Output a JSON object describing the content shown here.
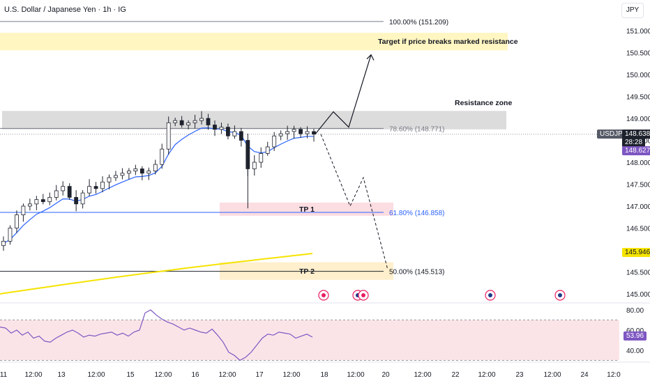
{
  "header": {
    "symbol_title": "U.S. Dollar / Japanese Yen · 1h · IG",
    "currency_button": "JPY"
  },
  "price_tags": {
    "ticker": "USDJPY",
    "last_price": "148.638",
    "countdown": "28:28",
    "bid_price": "148.627",
    "ma_price": "145.946",
    "ticker_color": "#555a66",
    "countdown_color": "#1e222d",
    "bid_color": "#7e57c2",
    "ma_color": "#f5e300"
  },
  "colors": {
    "candle": "#1e222d",
    "ma_fast": "#2962ff",
    "ma_slow": "#f5e300",
    "rsi_line": "#7e57c2",
    "rsi_band": "#fbe4e8",
    "fib_line": "#787b86",
    "fib_618": "#2962ff",
    "resistance_zone": "#dcdcdc",
    "target_zone": "#fff6c2",
    "tp1_zone": "#fcdde1",
    "tp2_zone": "#ffefcc"
  },
  "annotations": {
    "target_text": "Target if price breaks marked resistance",
    "resistance_text": "Resistance zone",
    "tp1": "TP 1",
    "tp2": "TP 2"
  },
  "chart_data": {
    "type": "candlestick",
    "title": "U.S. Dollar / Japanese Yen · 1h · IG",
    "ylim": [
      144.85,
      151.45
    ],
    "y_ticks": [
      "151.000",
      "150.500",
      "150.000",
      "149.500",
      "149.000",
      "148.500",
      "148.000",
      "147.500",
      "147.000",
      "146.500",
      "146.000",
      "145.500",
      "145.000"
    ],
    "x_ticks": [
      "11",
      "12:00",
      "13",
      "12:00",
      "15",
      "12:00",
      "16",
      "12:00",
      "17",
      "12:00",
      "18",
      "12:00",
      "20",
      "12:00",
      "22",
      "12:00",
      "23",
      "12:00",
      "24",
      "12:0"
    ],
    "fib_levels": [
      {
        "label": "100.00% (151.209)",
        "price": 151.209
      },
      {
        "label": "78.60% (148.771)",
        "price": 148.771
      },
      {
        "label": "61.80% (146.858)",
        "price": 146.858
      },
      {
        "label": "50.00% (145.513)",
        "price": 145.513
      }
    ],
    "zones": {
      "target": [
        150.55,
        150.95
      ],
      "resistance": [
        148.75,
        149.17
      ],
      "tp1": [
        146.78,
        147.08
      ],
      "tp2": [
        145.32,
        145.72
      ]
    },
    "close_path": [
      146.2,
      146.5,
      146.8,
      147.0,
      147.05,
      147.15,
      147.1,
      147.2,
      147.35,
      147.45,
      147.2,
      147.05,
      147.3,
      147.45,
      147.4,
      147.55,
      147.65,
      147.7,
      147.75,
      147.8,
      147.85,
      147.75,
      147.8,
      147.95,
      148.3,
      148.9,
      148.95,
      148.85,
      148.9,
      148.95,
      149.0,
      148.85,
      148.75,
      148.8,
      148.6,
      148.7,
      148.5,
      147.85,
      148.0,
      148.2,
      148.35,
      148.6,
      148.65,
      148.7,
      148.75,
      148.65,
      148.7,
      148.64
    ],
    "projection_up": [
      [
        148.64,
        0
      ],
      [
        149.15,
        1
      ],
      [
        148.8,
        2
      ],
      [
        150.45,
        3
      ]
    ],
    "projection_down": [
      [
        148.64,
        0
      ],
      [
        147.0,
        1
      ],
      [
        147.65,
        2
      ],
      [
        145.55,
        3
      ]
    ],
    "rsi": {
      "y_ticks": [
        "80.00",
        "60.00",
        "40.00"
      ],
      "current": "53.96",
      "levels": [
        70,
        30
      ],
      "values": [
        63,
        62,
        57,
        60,
        55,
        58,
        52,
        54,
        49,
        48,
        52,
        55,
        58,
        60,
        57,
        53,
        55,
        54,
        56,
        57,
        58,
        55,
        57,
        54,
        58,
        60,
        77,
        80,
        75,
        71,
        68,
        66,
        63,
        60,
        62,
        60,
        58,
        57,
        61,
        55,
        48,
        38,
        35,
        30,
        33,
        38,
        45,
        52,
        56,
        55,
        58,
        57,
        56,
        52,
        54,
        56,
        53
      ]
    }
  }
}
